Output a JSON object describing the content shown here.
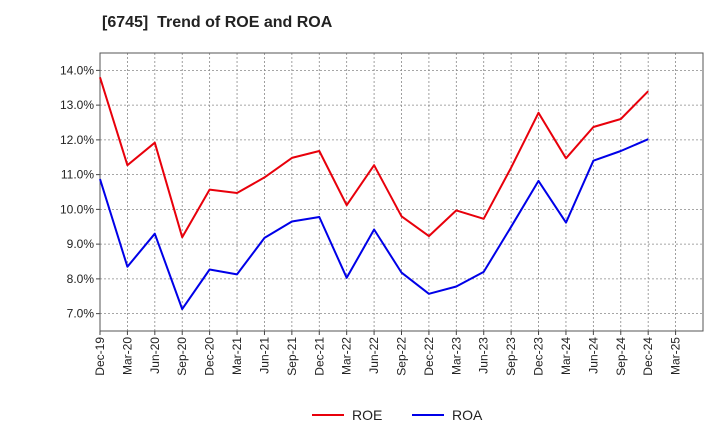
{
  "title": "[6745]  Trend of ROE and ROA",
  "chart_data": {
    "type": "line",
    "title": "[6745]  Trend of ROE and ROA",
    "xlabel": "",
    "ylabel": "",
    "categories": [
      "Dec-19",
      "Mar-20",
      "Jun-20",
      "Sep-20",
      "Dec-20",
      "Mar-21",
      "Jun-21",
      "Sep-21",
      "Dec-21",
      "Mar-22",
      "Jun-22",
      "Sep-22",
      "Dec-22",
      "Mar-23",
      "Jun-23",
      "Sep-23",
      "Dec-23",
      "Mar-24",
      "Jun-24",
      "Sep-24",
      "Dec-24",
      "Mar-25"
    ],
    "ylim": [
      6.5,
      14.5
    ],
    "yticks": [
      7.0,
      8.0,
      9.0,
      10.0,
      11.0,
      12.0,
      13.0,
      14.0
    ],
    "ytick_labels": [
      "7.0%",
      "8.0%",
      "9.0%",
      "10.0%",
      "11.0%",
      "12.0%",
      "13.0%",
      "14.0%"
    ],
    "grid": true,
    "legend_position": "bottom",
    "series": [
      {
        "name": "ROE",
        "color": "#e8000b",
        "values": [
          13.8,
          11.27,
          11.92,
          9.2,
          10.57,
          10.47,
          10.92,
          11.48,
          11.68,
          10.12,
          11.27,
          9.8,
          9.23,
          9.97,
          9.73,
          11.2,
          12.78,
          11.47,
          12.37,
          12.6,
          13.4,
          null
        ]
      },
      {
        "name": "ROA",
        "color": "#0000e8",
        "values": [
          10.87,
          8.35,
          9.3,
          7.13,
          8.27,
          8.13,
          9.18,
          9.65,
          9.78,
          8.03,
          9.42,
          8.18,
          7.57,
          7.78,
          8.2,
          9.5,
          10.82,
          9.62,
          11.4,
          11.68,
          12.02,
          null
        ]
      }
    ]
  }
}
